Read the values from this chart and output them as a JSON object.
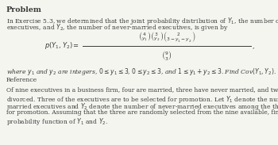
{
  "title": "Problem",
  "line1": "In Exercise 5.3, we determined that the joint probability distribution of $Y_1$, the number of married",
  "line2": "executives, and $Y_2$, the number of never-married executives, is given by",
  "formula_label": "$p(Y_1, Y_2) =$",
  "formula_num": "$\\binom{4}{y_1}\\binom{3}{y_2}\\binom{2}{3-y_1-y_2}$",
  "formula_den": "$\\binom{9}{3}$",
  "para2": "where $y_1$ and $y_2$ are integers, $0 \\leq y_1 \\leq 3$, $0 \\leq y_2 \\leq 3$, and $1 \\leq y_1 + y_2 \\leq 3$. Find Cov$(Y_1, Y_2)$.",
  "ref_title": "Reference",
  "ref1": "Of nine executives in a business firm, four are married, three have never married, and two are",
  "ref2": "divorced. Three of the executives are to be selected for promotion. Let $Y_1$ denote the number of",
  "ref3": "married executives and $Y_2$ denote the number of never-married executives among the three selected",
  "ref4": "for promotion. Assuming that the three are randomly selected from the nine available, find the joint",
  "ref5": "probability function of $Y_1$ and $Y_2$.",
  "bg_color": "#f5f5f0",
  "text_color": "#3a3a3a",
  "title_fontsize": 6.8,
  "body_fontsize": 5.5,
  "formula_fontsize": 6.0,
  "ref_fontsize": 5.5
}
